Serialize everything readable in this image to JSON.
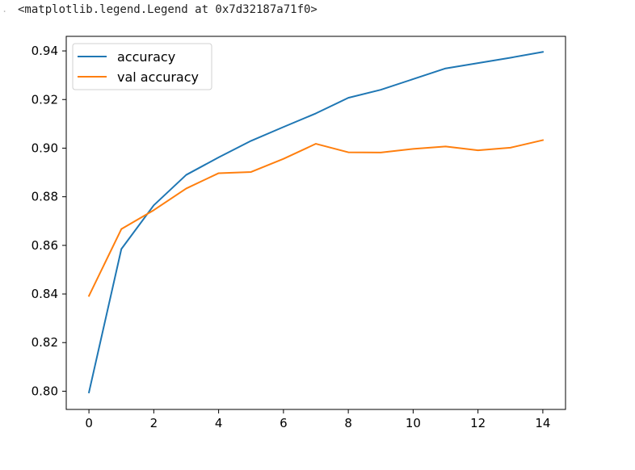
{
  "output": {
    "marker": ".",
    "text": "<matplotlib.legend.Legend at 0x7d32187a71f0>"
  },
  "chart_data": {
    "type": "line",
    "title": "",
    "xlabel": "",
    "ylabel": "",
    "xlim": [
      -0.7,
      14.7
    ],
    "ylim": [
      0.7925,
      0.946
    ],
    "x_ticks": [
      0,
      2,
      4,
      6,
      8,
      10,
      12,
      14
    ],
    "y_ticks": [
      0.8,
      0.82,
      0.84,
      0.86,
      0.88,
      0.9,
      0.92,
      0.94
    ],
    "grid": false,
    "legend_position": "top-left",
    "x": [
      0,
      1,
      2,
      3,
      4,
      5,
      6,
      7,
      8,
      9,
      10,
      11,
      12,
      13,
      14
    ],
    "series": [
      {
        "name": "accuracy",
        "color": "#1f77b4",
        "values": [
          0.7995,
          0.8585,
          0.8765,
          0.889,
          0.8962,
          0.903,
          0.9087,
          0.9143,
          0.9207,
          0.924,
          0.9284,
          0.9328,
          0.935,
          0.9372,
          0.9396
        ]
      },
      {
        "name": "val accuracy",
        "color": "#ff7f0e",
        "values": [
          0.8392,
          0.8667,
          0.8745,
          0.8834,
          0.8897,
          0.8902,
          0.8956,
          0.9018,
          0.8983,
          0.8982,
          0.8997,
          0.9007,
          0.8991,
          0.9002,
          0.9033
        ]
      }
    ]
  }
}
